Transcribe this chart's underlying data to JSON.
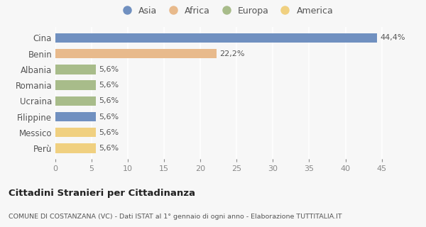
{
  "categories": [
    "Cina",
    "Benin",
    "Albania",
    "Romania",
    "Ucraina",
    "Filippine",
    "Messico",
    "Perù"
  ],
  "values": [
    44.4,
    22.2,
    5.6,
    5.6,
    5.6,
    5.6,
    5.6,
    5.6
  ],
  "labels": [
    "44,4%",
    "22,2%",
    "5,6%",
    "5,6%",
    "5,6%",
    "5,6%",
    "5,6%",
    "5,6%"
  ],
  "colors": [
    "#7090c0",
    "#e8ba8c",
    "#a8bc8a",
    "#a8bc8a",
    "#a8bc8a",
    "#7090c0",
    "#f0d080",
    "#f0d080"
  ],
  "legend_labels": [
    "Asia",
    "Africa",
    "Europa",
    "America"
  ],
  "legend_colors": [
    "#7090c0",
    "#e8ba8c",
    "#a8bc8a",
    "#f0d080"
  ],
  "title": "Cittadini Stranieri per Cittadinanza",
  "subtitle": "COMUNE DI COSTANZANA (VC) - Dati ISTAT al 1° gennaio di ogni anno - Elaborazione TUTTITALIA.IT",
  "xlim": [
    0,
    47
  ],
  "xticks": [
    0,
    5,
    10,
    15,
    20,
    25,
    30,
    35,
    40,
    45
  ],
  "background_color": "#f7f7f7",
  "plot_bg_color": "#f7f7f7",
  "grid_color": "#ffffff",
  "bar_height": 0.6,
  "label_fontsize": 8,
  "ytick_fontsize": 8.5,
  "xtick_fontsize": 8
}
